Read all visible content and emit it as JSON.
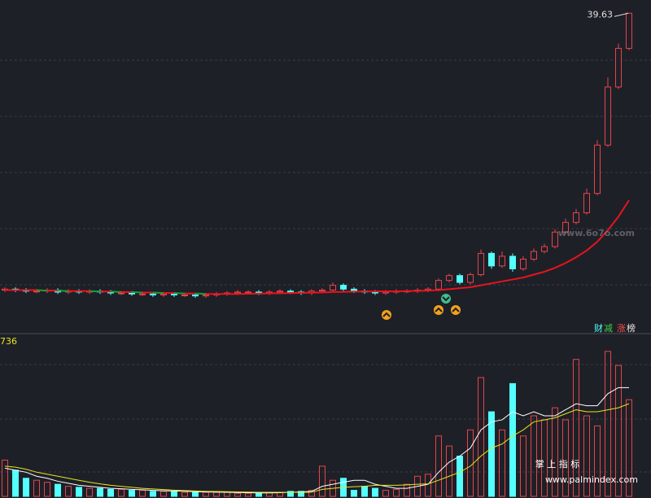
{
  "chart_data": {
    "type": "candlestick",
    "up_color": "#e8434b",
    "down_color": "#54ffff",
    "ylim": [
      6.5,
      41
    ],
    "grid_lines": 5,
    "open": [
      11.0,
      11.1,
      11.0,
      10.9,
      10.9,
      11.0,
      10.8,
      10.9,
      10.8,
      10.9,
      10.8,
      10.7,
      10.7,
      10.6,
      10.6,
      10.5,
      10.6,
      10.5,
      10.5,
      10.4,
      10.5,
      10.6,
      10.7,
      10.8,
      10.8,
      10.7,
      10.8,
      10.9,
      10.8,
      10.7,
      10.9,
      11.0,
      11.5,
      11.1,
      10.9,
      10.8,
      10.7,
      10.8,
      10.9,
      10.9,
      11.0,
      11.1,
      12.0,
      12.5,
      11.8,
      12.6,
      14.8,
      13.5,
      14.5,
      13.2,
      14.2,
      15.0,
      15.5,
      17.0,
      18.0,
      19.0,
      21.0,
      26.0,
      32.0,
      36.0
    ],
    "high": [
      11.3,
      11.3,
      11.2,
      11.1,
      11.2,
      11.2,
      11.1,
      11.1,
      11.1,
      11.1,
      11.0,
      10.9,
      10.9,
      10.8,
      10.8,
      10.8,
      10.8,
      10.7,
      10.7,
      10.7,
      10.8,
      10.9,
      11.0,
      11.0,
      11.0,
      11.0,
      11.1,
      11.1,
      11.0,
      11.1,
      11.2,
      11.8,
      11.7,
      11.3,
      11.1,
      11.0,
      11.0,
      11.1,
      11.1,
      11.2,
      11.3,
      12.2,
      12.7,
      12.7,
      12.8,
      15.2,
      15.0,
      15.0,
      14.8,
      14.5,
      15.3,
      15.8,
      17.3,
      18.4,
      19.4,
      21.5,
      26.5,
      33.0,
      36.5,
      39.63
    ],
    "low": [
      10.8,
      10.8,
      10.7,
      10.7,
      10.7,
      10.6,
      10.6,
      10.6,
      10.6,
      10.6,
      10.5,
      10.5,
      10.4,
      10.4,
      10.3,
      10.3,
      10.3,
      10.3,
      10.2,
      10.2,
      10.3,
      10.4,
      10.5,
      10.6,
      10.5,
      10.5,
      10.6,
      10.6,
      10.5,
      10.5,
      10.7,
      10.8,
      10.9,
      10.7,
      10.6,
      10.5,
      10.5,
      10.6,
      10.7,
      10.7,
      10.8,
      10.9,
      11.8,
      11.6,
      11.6,
      12.4,
      13.2,
      13.3,
      12.9,
      13.0,
      14.0,
      14.8,
      15.3,
      16.8,
      17.8,
      18.8,
      20.8,
      25.8,
      31.8,
      35.8
    ],
    "close": [
      11.1,
      11.0,
      10.9,
      10.9,
      11.0,
      10.8,
      10.9,
      10.8,
      10.9,
      10.8,
      10.7,
      10.7,
      10.6,
      10.6,
      10.5,
      10.6,
      10.5,
      10.5,
      10.4,
      10.5,
      10.6,
      10.7,
      10.8,
      10.8,
      10.7,
      10.8,
      10.9,
      10.8,
      10.7,
      10.9,
      11.0,
      11.5,
      11.1,
      10.9,
      10.8,
      10.7,
      10.8,
      10.9,
      10.9,
      11.0,
      11.1,
      12.0,
      12.5,
      11.8,
      12.6,
      14.8,
      13.5,
      14.5,
      13.2,
      14.2,
      15.0,
      15.5,
      17.0,
      18.0,
      19.0,
      21.0,
      26.0,
      32.0,
      36.0,
      39.63
    ],
    "ma": {
      "rise_color": "#e8141e",
      "fall_color": "#1f9a3a",
      "values": [
        11.0,
        11.0,
        11.0,
        11.0,
        10.95,
        10.95,
        10.9,
        10.9,
        10.9,
        10.85,
        10.85,
        10.8,
        10.8,
        10.75,
        10.75,
        10.7,
        10.7,
        10.65,
        10.65,
        10.6,
        10.6,
        10.6,
        10.6,
        10.62,
        10.64,
        10.66,
        10.68,
        10.7,
        10.72,
        10.74,
        10.76,
        10.8,
        10.82,
        10.84,
        10.85,
        10.86,
        10.87,
        10.88,
        10.9,
        10.92,
        10.95,
        11.0,
        11.1,
        11.2,
        11.3,
        11.5,
        11.7,
        11.9,
        12.1,
        12.3,
        12.6,
        12.9,
        13.3,
        13.8,
        14.4,
        15.1,
        16.0,
        17.2,
        18.6,
        20.3
      ]
    },
    "volume": {
      "ylim": [
        0,
        800
      ],
      "label": "736",
      "values": [
        180,
        130,
        90,
        80,
        70,
        60,
        50,
        45,
        40,
        40,
        35,
        35,
        30,
        30,
        25,
        25,
        25,
        20,
        20,
        20,
        20,
        20,
        15,
        15,
        15,
        20,
        20,
        25,
        25,
        30,
        150,
        80,
        90,
        30,
        50,
        40,
        30,
        35,
        60,
        100,
        110,
        300,
        250,
        200,
        330,
        590,
        420,
        330,
        560,
        300,
        400,
        380,
        440,
        380,
        680,
        400,
        350,
        720,
        650,
        480
      ],
      "series": [
        {
          "color": "#ffffff",
          "values": [
            140,
            130,
            120,
            100,
            90,
            75,
            65,
            55,
            50,
            45,
            40,
            38,
            35,
            33,
            30,
            28,
            27,
            25,
            23,
            22,
            21,
            20,
            19,
            18,
            17,
            17,
            18,
            20,
            22,
            25,
            50,
            60,
            70,
            80,
            80,
            60,
            50,
            40,
            40,
            50,
            60,
            120,
            170,
            200,
            240,
            330,
            370,
            380,
            420,
            400,
            420,
            400,
            400,
            430,
            460,
            450,
            450,
            510,
            540,
            540
          ]
        },
        {
          "color": "#e6e61e",
          "values": [
            150,
            145,
            135,
            120,
            110,
            100,
            90,
            80,
            70,
            62,
            55,
            50,
            45,
            40,
            37,
            34,
            31,
            29,
            27,
            25,
            24,
            23,
            22,
            21,
            20,
            20,
            20,
            20,
            20,
            21,
            35,
            40,
            45,
            48,
            50,
            55,
            55,
            55,
            57,
            60,
            62,
            80,
            100,
            120,
            150,
            200,
            240,
            260,
            300,
            330,
            370,
            380,
            390,
            410,
            430,
            420,
            420,
            430,
            440,
            460
          ]
        }
      ]
    },
    "tags": [
      {
        "text": "财",
        "color": "#54ffff"
      },
      {
        "text": "减",
        "color": "#3ecf4a"
      },
      {
        "text": "涨",
        "color": "#ff4a4a"
      },
      {
        "text": "榜",
        "color": "#e8e8e8"
      }
    ],
    "watermarks": [
      "www.6o7o.com",
      "掌 上 指 标",
      "www.palmindex.com"
    ]
  }
}
